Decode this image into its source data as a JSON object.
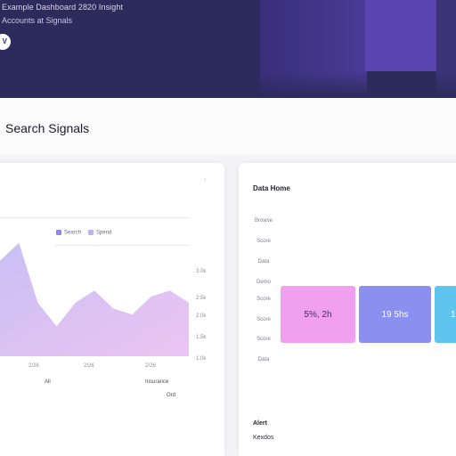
{
  "header": {
    "title": "Example Dashboard 2820 Insight",
    "subtitle": "Accounts at Signals",
    "action_button_label": "V"
  },
  "section": {
    "title": "Search Signals"
  },
  "left_card": {
    "corner_mark": "‹",
    "legend": [
      {
        "label": "Search",
        "color": "#8f86e8"
      },
      {
        "label": "Spend",
        "color": "#b9b2f2"
      }
    ],
    "y_ticks": [
      "3.0k",
      "2.5k",
      "2.0k",
      "1.5k",
      "1.0k"
    ],
    "x_ticks": [
      "2/26",
      "2/26",
      "2/26"
    ],
    "x_notes": [
      "All",
      "Insurance",
      "Ord"
    ],
    "colors": {
      "area_top": "#c9bff4",
      "area_bottom": "#ecc4f2"
    }
  },
  "right_card": {
    "title": "Data Home",
    "row_labels": [
      "Browse",
      "Score",
      "Data",
      "Demo",
      "Score",
      "Score",
      "Score",
      "Data"
    ],
    "tiles": [
      {
        "label": "5%, 2h",
        "color": "#f1a0ef"
      },
      {
        "label": "19 5hs",
        "color": "#8a8ff0"
      },
      {
        "label": "1",
        "color": "#5fc5ef"
      }
    ],
    "footer_label": "Alert",
    "footer_value": "Kexdos"
  },
  "chart_data": {
    "type": "area",
    "x": [
      0,
      1,
      2,
      3,
      4,
      5,
      6,
      7,
      8,
      9,
      10
    ],
    "series": [
      {
        "values": [
          2.6,
          2.9,
          1.9,
          1.5,
          1.9,
          2.1,
          1.8,
          1.7,
          2.0,
          2.1,
          1.9
        ]
      }
    ],
    "ylim": [
      1.0,
      3.0
    ]
  }
}
